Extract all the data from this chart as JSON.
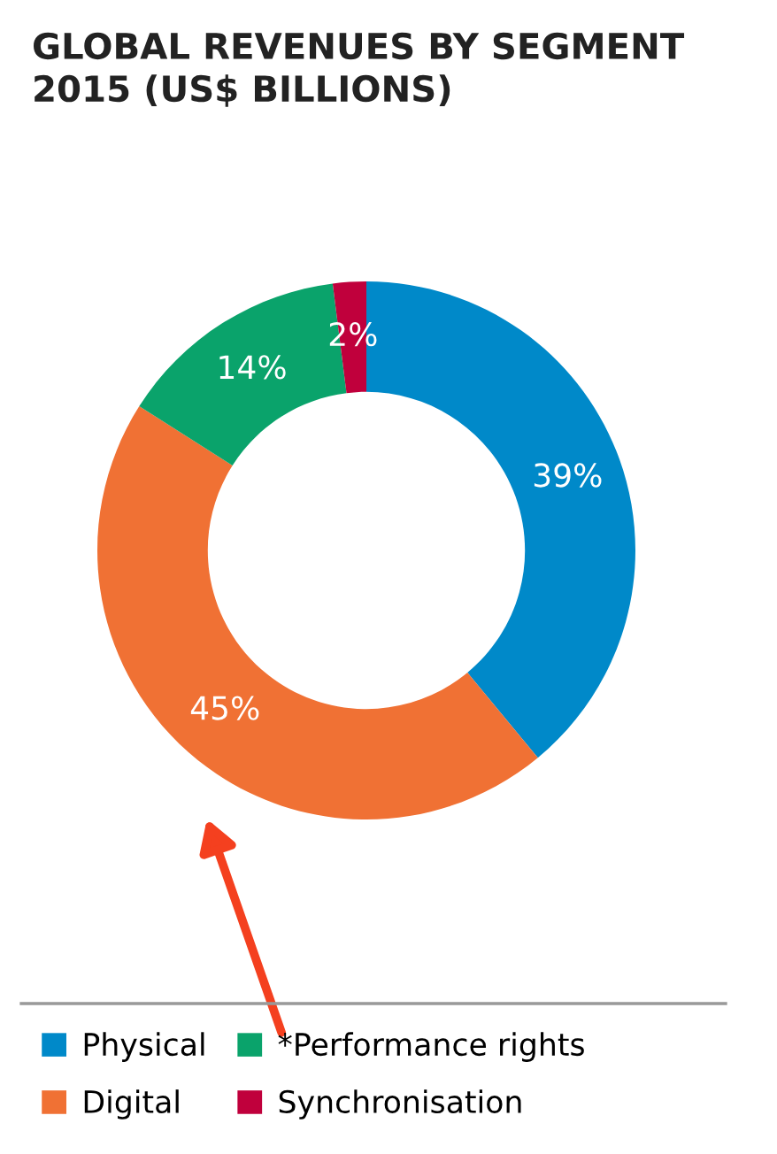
{
  "chart_data": {
    "type": "donut",
    "title": "GLOBAL REVENUES BY SEGMENT\n2015 (US$ BILLIONS)",
    "categories": [
      "Physical",
      "Digital",
      "*Performance rights",
      "Synchronisation"
    ],
    "values": [
      39,
      45,
      14,
      2
    ],
    "colors": [
      "#0089c9",
      "#f07134",
      "#0aa36b",
      "#c0003c"
    ],
    "value_labels": [
      "39%",
      "45%",
      "14%",
      "2%"
    ],
    "legend": "bottom"
  }
}
